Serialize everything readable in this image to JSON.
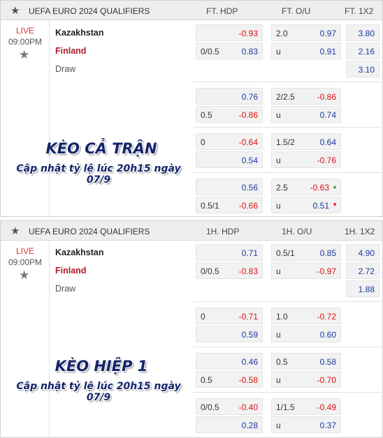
{
  "panels": [
    {
      "league": "UEFA EURO 2024 QUALIFIERS",
      "col_hdp": "FT. HDP",
      "col_ou": "FT. O/U",
      "col_1x2": "FT. 1X2",
      "status": "LIVE",
      "time": "09:00PM",
      "home": "Kazakhstan",
      "away": "Finland",
      "draw": "Draw",
      "overlay_title": "KÈO CẢ TRẬN",
      "overlay_sub": "Cập nhật tỷ lệ lúc 20h15 ngày 07/9",
      "x12": [
        "3.80",
        "2.16",
        "3.10"
      ],
      "lines": [
        {
          "hdp_home_l": "",
          "hdp_home_r": "-0.93",
          "hdp_away_l": "0/0.5",
          "hdp_away_r": "0.83",
          "ou_over_l": "2.0",
          "ou_over_r": "0.97",
          "ou_under_l": "u",
          "ou_under_r": "0.91"
        },
        {
          "hdp_home_l": "",
          "hdp_home_r": "0.76",
          "hdp_away_l": "0.5",
          "hdp_away_r": "-0.86",
          "ou_over_l": "2/2.5",
          "ou_over_r": "-0.86",
          "ou_under_l": "u",
          "ou_under_r": "0.74"
        },
        {
          "hdp_home_l": "0",
          "hdp_home_r": "-0.64",
          "hdp_away_l": "",
          "hdp_away_r": "0.54",
          "ou_over_l": "1.5/2",
          "ou_over_r": "0.64",
          "ou_under_l": "u",
          "ou_under_r": "-0.76"
        },
        {
          "hdp_home_l": "",
          "hdp_home_r": "0.56",
          "hdp_away_l": "0.5/1",
          "hdp_away_r": "-0.66",
          "ou_over_l": "2.5",
          "ou_over_r": "-0.63",
          "ou_under_l": "u",
          "ou_under_r": "0.51"
        }
      ]
    },
    {
      "league": "UEFA EURO 2024 QUALIFIERS",
      "col_hdp": "1H. HDP",
      "col_ou": "1H. O/U",
      "col_1x2": "1H. 1X2",
      "status": "LIVE",
      "time": "09:00PM",
      "home": "Kazakhstan",
      "away": "Finland",
      "draw": "Draw",
      "overlay_title": "KÈO HIỆP 1",
      "overlay_sub": "Cập nhật tỷ lệ lúc 20h15 ngày 07/9",
      "x12": [
        "4.90",
        "2.72",
        "1.88"
      ],
      "lines": [
        {
          "hdp_home_l": "",
          "hdp_home_r": "0.71",
          "hdp_away_l": "0/0.5",
          "hdp_away_r": "-0.83",
          "ou_over_l": "0.5/1",
          "ou_over_r": "0.85",
          "ou_under_l": "u",
          "ou_under_r": "-0.97"
        },
        {
          "hdp_home_l": "0",
          "hdp_home_r": "-0.71",
          "hdp_away_l": "",
          "hdp_away_r": "0.59",
          "ou_over_l": "1.0",
          "ou_over_r": "-0.72",
          "ou_under_l": "u",
          "ou_under_r": "0.60"
        },
        {
          "hdp_home_l": "",
          "hdp_home_r": "0.46",
          "hdp_away_l": "0.5",
          "hdp_away_r": "-0.58",
          "ou_over_l": "0.5",
          "ou_over_r": "0.58",
          "ou_under_l": "u",
          "ou_under_r": "-0.70"
        },
        {
          "hdp_home_l": "0/0.5",
          "hdp_home_r": "-0.40",
          "hdp_away_l": "",
          "hdp_away_r": "0.28",
          "ou_over_l": "1/1.5",
          "ou_over_r": "-0.49",
          "ou_under_l": "u",
          "ou_under_r": "0.37"
        }
      ]
    }
  ],
  "odds_movement": {
    "ou_over_line_4": "up",
    "ou_under_line_4": "down"
  },
  "icons": {
    "header_star": "star-icon",
    "favorite": "star-icon",
    "up": "triangle-up-icon",
    "down": "triangle-down-icon"
  },
  "colors": {
    "negative": "#dd1111",
    "positive": "#1a3aa0",
    "away_team": "#b0182a",
    "live": "#dd3333",
    "overlay_text": "#14246b"
  }
}
